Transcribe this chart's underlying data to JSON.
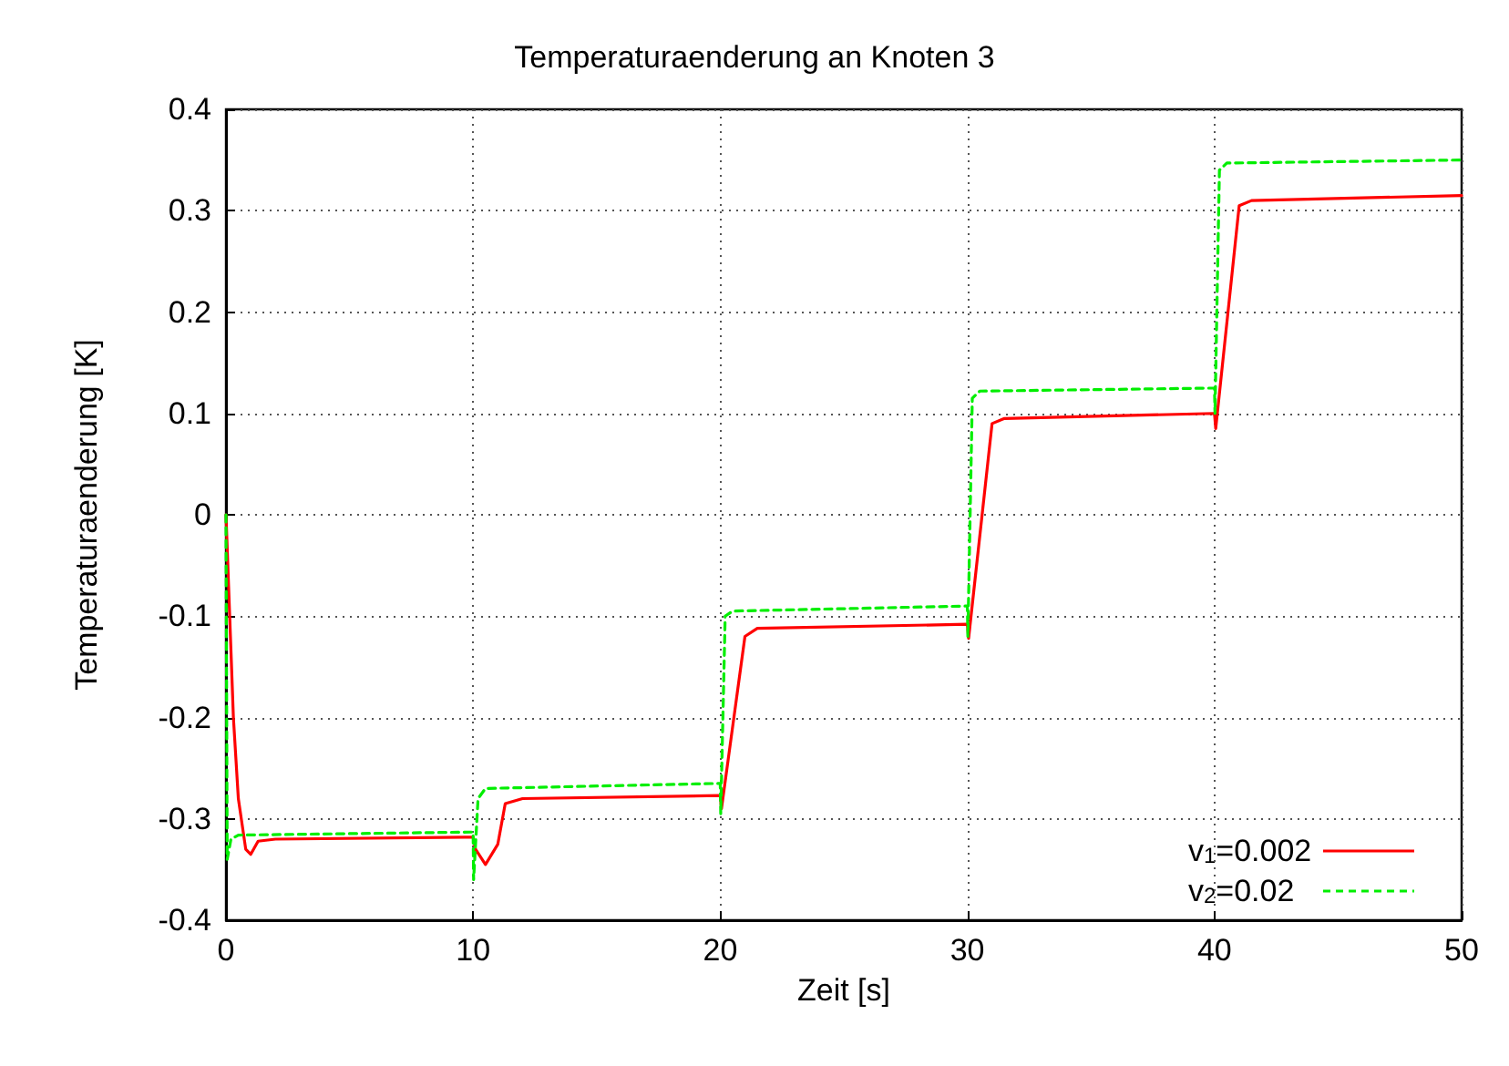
{
  "chart_data": {
    "type": "line",
    "title": "Temperaturaenderung an Knoten 3",
    "xlabel": "Zeit [s]",
    "ylabel": "Temperaturaenderung [K]",
    "xlim": [
      0,
      50
    ],
    "xticks": [
      0,
      10,
      20,
      30,
      40,
      50
    ],
    "ylim": [
      -0.4,
      0.4
    ],
    "yticks": [
      -0.4,
      -0.3,
      -0.2,
      -0.1,
      0,
      0.1,
      0.2,
      0.3,
      0.4
    ],
    "grid": true,
    "legend": "bottom right",
    "marker": "none",
    "series": [
      {
        "name": "v$_{1}$=0.002",
        "color": "#ff0000",
        "line_style": "solid",
        "x": [
          0,
          0.3,
          0.5,
          0.8,
          1.0,
          1.3,
          2,
          10,
          10.1,
          10.5,
          11,
          11.3,
          12,
          20,
          20.05,
          21,
          21.5,
          30,
          30.05,
          31,
          31.5,
          40,
          40.05,
          41,
          41.5,
          50
        ],
        "values": [
          0,
          -0.2,
          -0.28,
          -0.33,
          -0.335,
          -0.322,
          -0.32,
          -0.318,
          -0.33,
          -0.345,
          -0.325,
          -0.285,
          -0.28,
          -0.277,
          -0.29,
          -0.12,
          -0.112,
          -0.108,
          -0.122,
          0.09,
          0.095,
          0.1,
          0.085,
          0.305,
          0.31,
          0.315
        ]
      },
      {
        "name": "v$_{2}$=0.02",
        "color": "#00ee00",
        "line_style": "dashed",
        "x": [
          0,
          0.05,
          0.2,
          0.5,
          10,
          10.02,
          10.2,
          10.5,
          20,
          20.02,
          20.2,
          20.5,
          30,
          30.02,
          30.2,
          30.5,
          40,
          40.02,
          40.2,
          40.5,
          50
        ],
        "values": [
          0,
          -0.34,
          -0.32,
          -0.316,
          -0.313,
          -0.36,
          -0.28,
          -0.27,
          -0.265,
          -0.295,
          -0.1,
          -0.095,
          -0.09,
          -0.12,
          0.115,
          0.122,
          0.125,
          0.1,
          0.34,
          0.347,
          0.35
        ]
      }
    ]
  }
}
